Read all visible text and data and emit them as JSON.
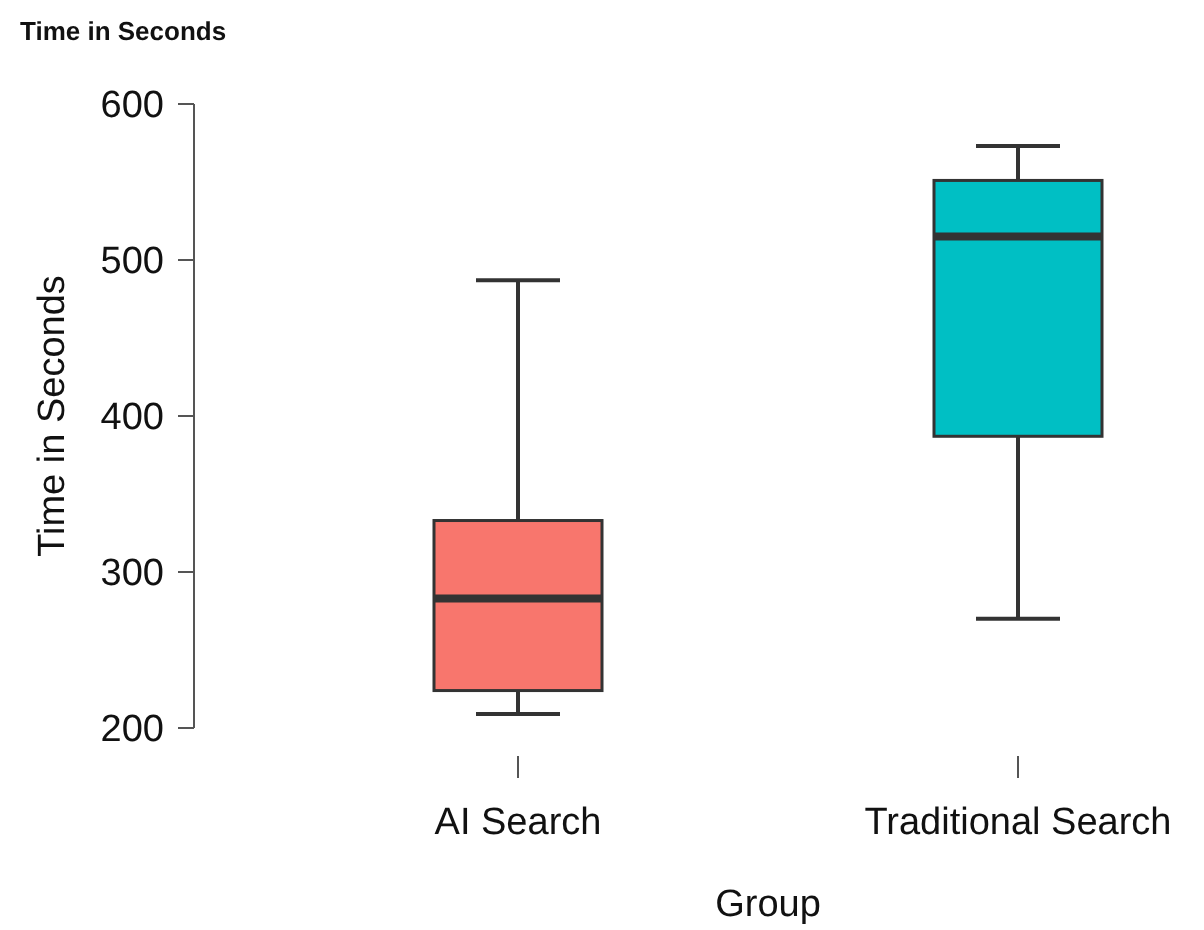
{
  "chart_data": {
    "type": "box",
    "title": "Time in Seconds",
    "xlabel": "Group",
    "ylabel": "Time in Seconds",
    "categories": [
      "AI Search",
      "Traditional Search"
    ],
    "colors": [
      "#f8766d",
      "#00bfc4"
    ],
    "boxes": [
      {
        "low": 209,
        "q1": 224,
        "median": 283,
        "q3": 333,
        "high": 487
      },
      {
        "low": 270,
        "q1": 387,
        "median": 515,
        "q3": 551,
        "high": 573
      }
    ],
    "ylim": [
      200,
      600
    ],
    "yticks": [
      200,
      300,
      400,
      500,
      600
    ],
    "grid": false
  }
}
